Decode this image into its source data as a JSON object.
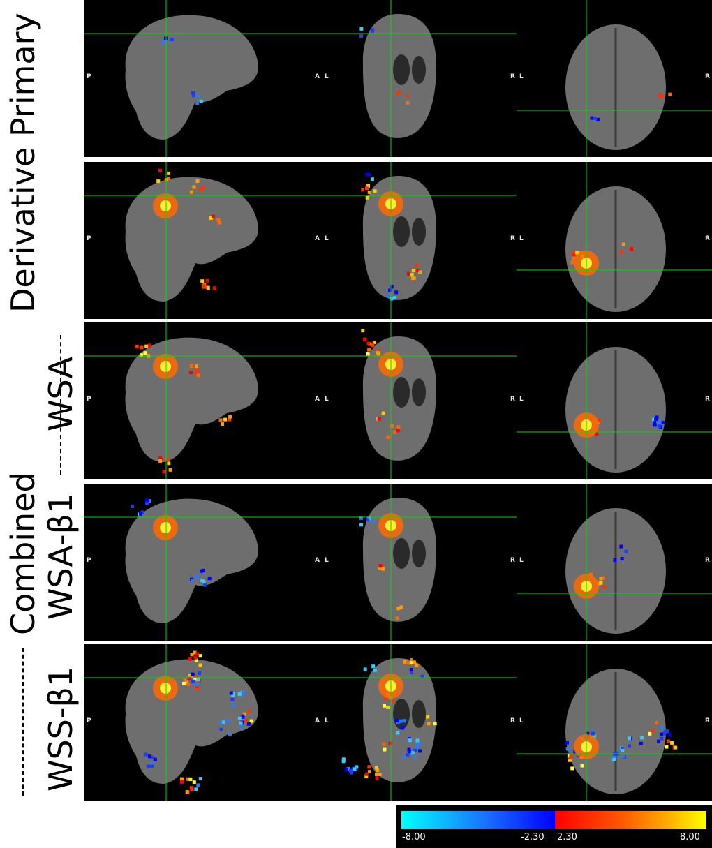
{
  "rows": [
    {
      "label": "Primary"
    },
    {
      "label": "Derivative"
    },
    {
      "label": "WSA"
    },
    {
      "label": "WSA-β1"
    },
    {
      "label": "WSS-β1"
    }
  ],
  "group_label": "Combined",
  "orientation_labels": {
    "p": "P",
    "a": "A",
    "l": "L",
    "r": "R"
  },
  "colorbar": {
    "ticks": [
      "-8.00",
      "-2.30",
      "2.30",
      "8.00"
    ],
    "negative_colors": [
      "#00ffff",
      "#0000ff"
    ],
    "positive_colors": [
      "#ff0000",
      "#ffff00"
    ]
  },
  "colors": {
    "crosshair": "#00dd00",
    "background": "#000000",
    "brain": "#6e6e6e"
  }
}
